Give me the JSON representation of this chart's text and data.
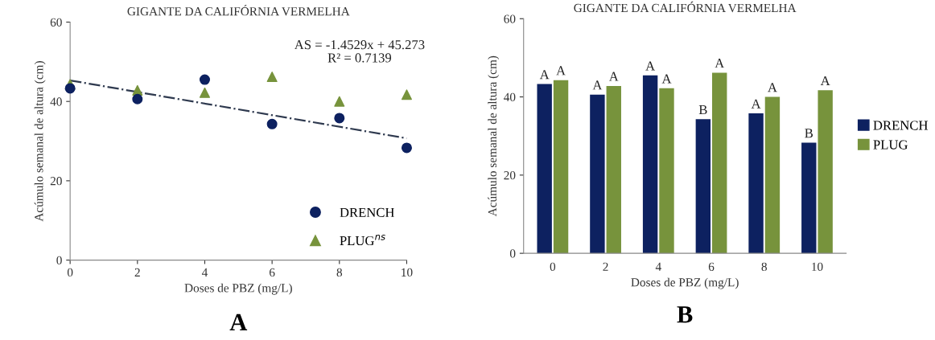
{
  "chart_data": [
    {
      "type": "scatter",
      "title": "GIGANTE DA CALIFÓRNIA VERMELHA",
      "xlabel": "Doses de PBZ (mg/L)",
      "ylabel": "Acúmulo semanal de altura (cm)",
      "x": [
        0,
        2,
        4,
        6,
        8,
        10
      ],
      "series": [
        {
          "name": "DRENCH",
          "color": "#0d2160",
          "marker": "circle",
          "values": [
            43.3,
            40.6,
            45.5,
            34.3,
            35.8,
            28.3
          ]
        },
        {
          "name": "PLUG$^{ns}$",
          "color": "#77933c",
          "marker": "triangle",
          "values": [
            44.3,
            42.8,
            42.2,
            46.2,
            40.0,
            41.7
          ]
        },
        {
          "type": "line",
          "color": "#2f3a4f",
          "line_style": "dashdot",
          "marker": "none",
          "x": [
            0,
            10
          ],
          "values": [
            45.3,
            30.7
          ]
        }
      ],
      "xlim": [
        0,
        10
      ],
      "xticks": [
        0,
        2,
        4,
        6,
        8,
        10
      ],
      "ylim": [
        0,
        60
      ],
      "yticks": [
        0,
        20,
        40,
        60
      ],
      "grid": false,
      "legend": "bottom right",
      "annotations": [
        "AS = -1.4529x + 45.273",
        "R² = 0.7139",
        "A"
      ]
    },
    {
      "type": "bar",
      "title": "GIGANTE DA CALIFÓRNIA VERMELHA",
      "xlabel": "Doses de PBZ (mg/L)",
      "ylabel": "Acúmulo semanal de altura (cm)",
      "categories": [
        "0",
        "2",
        "4",
        "6",
        "8",
        "10"
      ],
      "series": [
        {
          "name": "DRENCH",
          "color": "#0d2160",
          "values": [
            43.3,
            40.6,
            45.5,
            34.3,
            35.8,
            28.3
          ],
          "value_labels": [
            "A",
            "A",
            "A",
            "B",
            "A",
            "B"
          ]
        },
        {
          "name": "PLUG",
          "color": "#77933c",
          "values": [
            44.3,
            42.8,
            42.2,
            46.2,
            40.0,
            41.7
          ],
          "value_labels": [
            "A",
            "A",
            "A",
            "A",
            "A",
            "A"
          ]
        }
      ],
      "ylim": [
        0,
        60
      ],
      "yticks": [
        0,
        20,
        40,
        60
      ],
      "grid": false,
      "legend": "right",
      "annotations": [
        "B"
      ]
    }
  ]
}
